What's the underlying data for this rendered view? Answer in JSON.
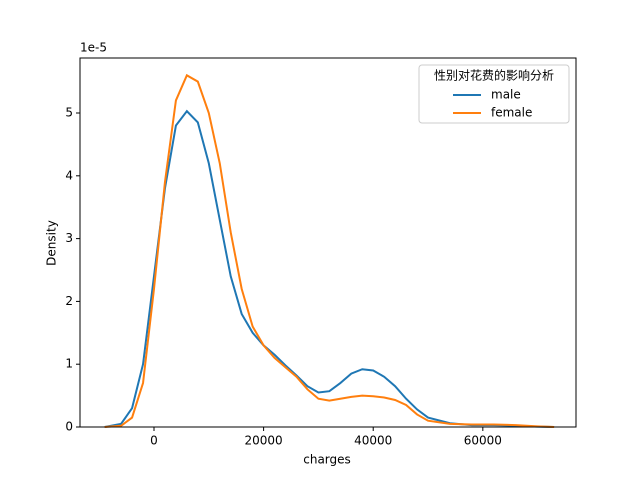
{
  "chart_data": {
    "type": "line",
    "x_label": "charges",
    "y_label": "Density",
    "y_offset_label": "1e-5",
    "legend_title": "性别对花费的影响分析",
    "legend_loc": "upper right",
    "x": [
      -9000,
      -6000,
      -4000,
      -2000,
      0,
      2000,
      4000,
      6000,
      8000,
      10000,
      12000,
      14000,
      16000,
      18000,
      20000,
      22000,
      24000,
      26000,
      28000,
      30000,
      32000,
      34000,
      36000,
      38000,
      40000,
      42000,
      44000,
      46000,
      48000,
      50000,
      54000,
      58000,
      62000,
      66000,
      70000,
      73000
    ],
    "series": [
      {
        "name": "male",
        "color": "#1f77b4",
        "values": [
          0,
          0.05,
          0.3,
          1.0,
          2.4,
          3.8,
          4.8,
          5.03,
          4.85,
          4.2,
          3.3,
          2.4,
          1.8,
          1.5,
          1.3,
          1.15,
          0.98,
          0.82,
          0.65,
          0.55,
          0.57,
          0.7,
          0.85,
          0.92,
          0.9,
          0.8,
          0.65,
          0.45,
          0.28,
          0.15,
          0.06,
          0.03,
          0.03,
          0.02,
          0.005,
          0
        ]
      },
      {
        "name": "female",
        "color": "#ff7f0e",
        "values": [
          0,
          0.02,
          0.15,
          0.7,
          2.2,
          3.9,
          5.2,
          5.6,
          5.5,
          5.0,
          4.2,
          3.1,
          2.2,
          1.6,
          1.3,
          1.1,
          0.95,
          0.8,
          0.6,
          0.45,
          0.42,
          0.45,
          0.48,
          0.5,
          0.49,
          0.47,
          0.43,
          0.35,
          0.2,
          0.1,
          0.05,
          0.04,
          0.04,
          0.03,
          0.01,
          0
        ]
      }
    ],
    "xlim": [
      -13500,
      77000
    ],
    "ylim": [
      0,
      5.876
    ],
    "xticks": [
      0,
      20000,
      40000,
      60000
    ],
    "yticks": [
      0,
      1,
      2,
      3,
      4,
      5
    ]
  }
}
